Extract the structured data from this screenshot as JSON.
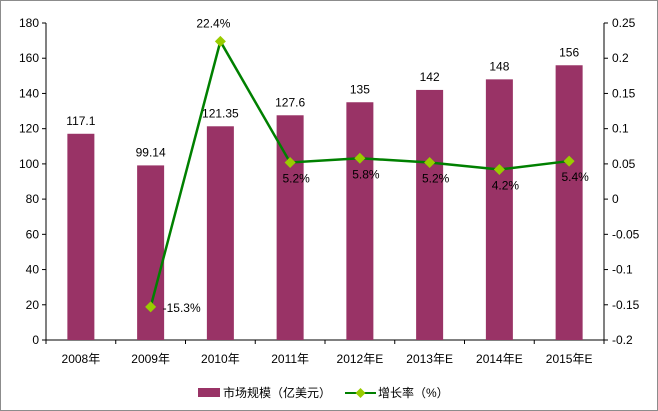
{
  "chart_data": {
    "type": "bar+line",
    "categories": [
      "2008年",
      "2009年",
      "2010年",
      "2011年",
      "2012年E",
      "2013年E",
      "2014年E",
      "2015年E"
    ],
    "series": [
      {
        "name": "市场规模（亿美元）",
        "type": "bar",
        "axis": "left",
        "values": [
          117.1,
          99.14,
          121.35,
          127.6,
          135,
          142,
          148,
          156
        ],
        "labels": [
          "117.1",
          "99.14",
          "121.35",
          "127.6",
          "135",
          "142",
          "148",
          "156"
        ],
        "color": "#993366"
      },
      {
        "name": "增长率（%）",
        "type": "line",
        "axis": "right",
        "values": [
          null,
          -0.153,
          0.224,
          0.052,
          0.058,
          0.052,
          0.042,
          0.054
        ],
        "labels": [
          "",
          "-15.3%",
          "22.4%",
          "5.2%",
          "5.8%",
          "5.2%",
          "4.2%",
          "5.4%"
        ],
        "line_color": "#008000",
        "marker_color": "#99cc00"
      }
    ],
    "y_left": {
      "min": 0,
      "max": 180,
      "ticks": [
        0,
        20,
        40,
        60,
        80,
        100,
        120,
        140,
        160,
        180
      ]
    },
    "y_right": {
      "min": -0.2,
      "max": 0.25,
      "ticks": [
        -0.2,
        -0.15,
        -0.1,
        -0.05,
        0,
        0.05,
        0.1,
        0.15,
        0.2,
        0.25
      ],
      "tick_labels": [
        "-0.2",
        "-0.15",
        "-0.1",
        "-0.05",
        "0",
        "0.05",
        "0.1",
        "0.15",
        "0.2",
        "0.25"
      ]
    },
    "grid": false,
    "legend_position": "bottom"
  }
}
